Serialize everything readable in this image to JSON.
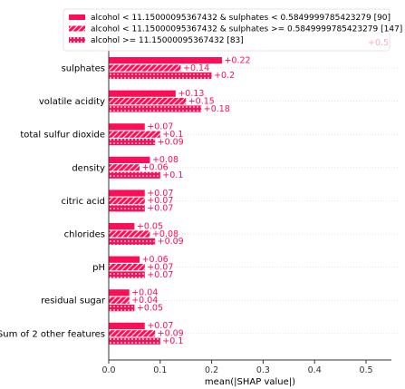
{
  "chart_data": {
    "type": "bar",
    "orientation": "horizontal",
    "xlabel": "mean(|SHAP value|)",
    "xlim": [
      0,
      0.55
    ],
    "xticks": [
      "0.0",
      "0.1",
      "0.2",
      "0.3",
      "0.4",
      "0.5"
    ],
    "legend_placement": "top",
    "bar_color": "#ff0d57",
    "categories": [
      "sulphates",
      "volatile acidity",
      "total sulfur dioxide",
      "density",
      "citric acid",
      "chlorides",
      "pH",
      "residual sugar",
      "Sum of 2 other features"
    ],
    "series": [
      {
        "name": "alcohol < 11.15000095367432 & sulphates < 0.5849999785423279 [90]",
        "pattern": "solid",
        "values": [
          0.22,
          0.13,
          0.07,
          0.08,
          0.07,
          0.05,
          0.06,
          0.04,
          0.07
        ],
        "labels": [
          "+0.22",
          "+0.13",
          "+0.07",
          "+0.08",
          "+0.07",
          "+0.05",
          "+0.06",
          "+0.04",
          "+0.07"
        ]
      },
      {
        "name": "alcohol < 11.15000095367432 & sulphates >= 0.5849999785423279 [147]",
        "pattern": "diagonal",
        "values": [
          0.14,
          0.15,
          0.1,
          0.06,
          0.07,
          0.08,
          0.07,
          0.04,
          0.09
        ],
        "labels": [
          "+0.14",
          "+0.15",
          "+0.1",
          "+0.06",
          "+0.07",
          "+0.08",
          "+0.07",
          "+0.04",
          "+0.09"
        ]
      },
      {
        "name": "alcohol >= 11.15000095367432 [83]",
        "pattern": "dots",
        "values": [
          0.2,
          0.18,
          0.09,
          0.1,
          0.07,
          0.09,
          0.07,
          0.05,
          0.1
        ],
        "labels": [
          "+0.2",
          "+0.18",
          "+0.09",
          "+0.1",
          "+0.07",
          "+0.09",
          "+0.07",
          "+0.05",
          "+0.1"
        ]
      }
    ],
    "hidden_label": "+0.5"
  }
}
